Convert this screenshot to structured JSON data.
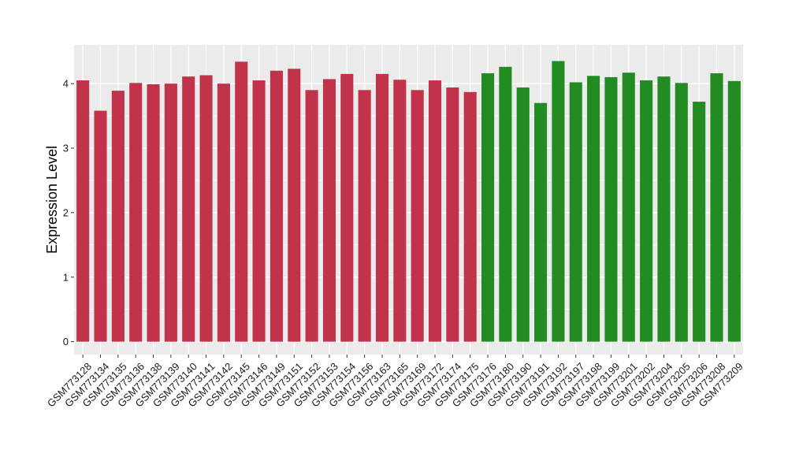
{
  "chart_data": {
    "type": "bar",
    "title": "",
    "xlabel": "",
    "ylabel": "Expression Level",
    "ylim": [
      -0.2,
      4.6
    ],
    "yticks": [
      0,
      1,
      2,
      3,
      4
    ],
    "grid": true,
    "legend": "none",
    "panel_background": "#ebebeb",
    "gridline_color": "#ffffff",
    "categories": [
      "GSM773128",
      "GSM773134",
      "GSM773135",
      "GSM773136",
      "GSM773138",
      "GSM773139",
      "GSM773140",
      "GSM773141",
      "GSM773142",
      "GSM773145",
      "GSM773146",
      "GSM773149",
      "GSM773151",
      "GSM773152",
      "GSM773153",
      "GSM773154",
      "GSM773156",
      "GSM773163",
      "GSM773165",
      "GSM773169",
      "GSM773172",
      "GSM773174",
      "GSM773175",
      "GSM773176",
      "GSM773180",
      "GSM773190",
      "GSM773191",
      "GSM773192",
      "GSM773197",
      "GSM773198",
      "GSM773199",
      "GSM773201",
      "GSM773202",
      "GSM773204",
      "GSM773205",
      "GSM773206",
      "GSM773208",
      "GSM773209"
    ],
    "values": [
      4.05,
      3.58,
      3.89,
      4.01,
      3.99,
      4.0,
      4.11,
      4.13,
      4.0,
      4.34,
      4.05,
      4.2,
      4.23,
      3.9,
      4.07,
      4.15,
      3.9,
      4.15,
      4.06,
      3.9,
      4.05,
      3.94,
      3.87,
      4.16,
      4.26,
      3.94,
      3.7,
      4.35,
      4.02,
      4.12,
      4.1,
      4.17,
      4.05,
      4.11,
      4.01,
      3.72,
      4.16,
      4.04
    ],
    "group_colors": [
      "#c1334a",
      "#c1334a",
      "#c1334a",
      "#c1334a",
      "#c1334a",
      "#c1334a",
      "#c1334a",
      "#c1334a",
      "#c1334a",
      "#c1334a",
      "#c1334a",
      "#c1334a",
      "#c1334a",
      "#c1334a",
      "#c1334a",
      "#c1334a",
      "#c1334a",
      "#c1334a",
      "#c1334a",
      "#c1334a",
      "#c1334a",
      "#c1334a",
      "#c1334a",
      "#228b22",
      "#228b22",
      "#228b22",
      "#228b22",
      "#228b22",
      "#228b22",
      "#228b22",
      "#228b22",
      "#228b22",
      "#228b22",
      "#228b22",
      "#228b22",
      "#228b22",
      "#228b22",
      "#228b22"
    ]
  }
}
